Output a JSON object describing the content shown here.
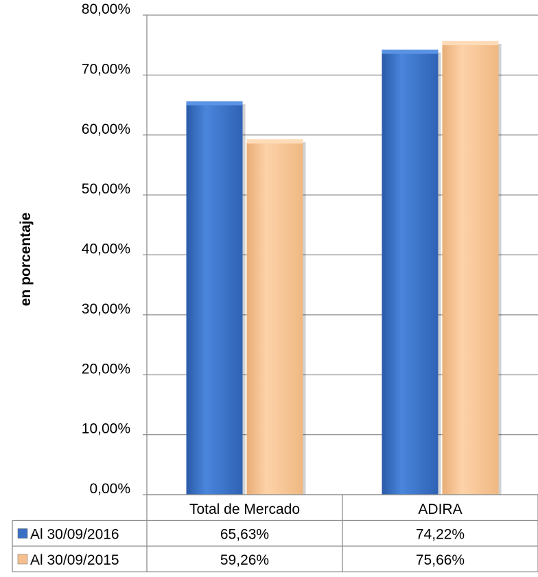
{
  "chart_data": {
    "type": "bar",
    "ylabel": "en porcentaje",
    "ylim": [
      0,
      80
    ],
    "yticks": [
      "0,00%",
      "10,00%",
      "20,00%",
      "30,00%",
      "40,00%",
      "50,00%",
      "60,00%",
      "70,00%",
      "80,00%"
    ],
    "grid": true,
    "legend": "data-table-left",
    "categories": [
      "Total de Mercado",
      "ADIRA"
    ],
    "series": [
      {
        "name": "Al 30/09/2016",
        "color": "#3a6fc4",
        "values": [
          65.63,
          74.22
        ],
        "labels": [
          "65,63%",
          "74,22%"
        ]
      },
      {
        "name": "Al 30/09/2015",
        "color": "#f5c08e",
        "values": [
          59.26,
          75.66
        ],
        "labels": [
          "59,26%",
          "75,66%"
        ]
      }
    ]
  }
}
